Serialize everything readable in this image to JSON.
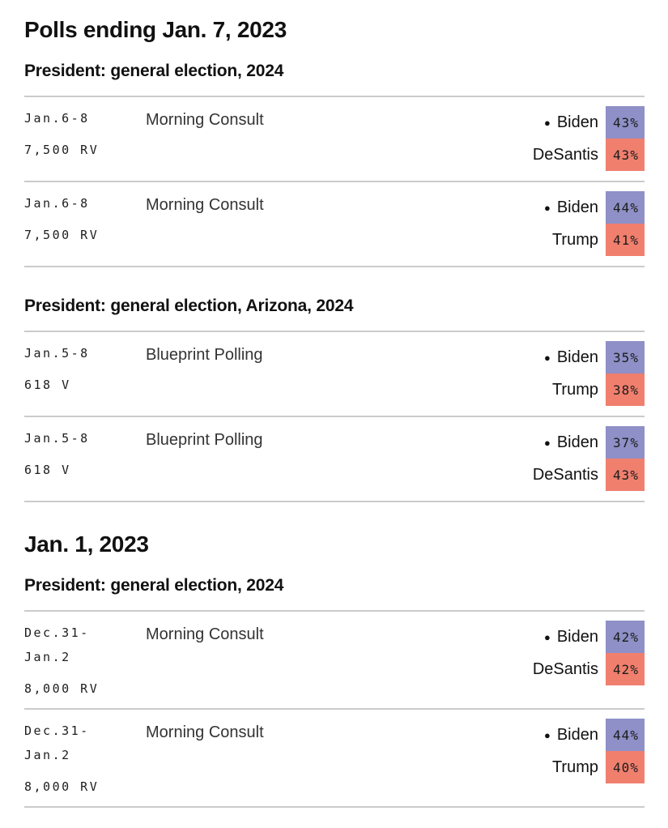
{
  "theme": {
    "dem_color": "#8e90c7",
    "rep_color": "#f07f6e",
    "divider_color": "#cbcbcb",
    "background": "#ffffff"
  },
  "icons": {
    "leader_dot": "●"
  },
  "sections": [
    {
      "heading": "Polls ending Jan. 7, 2023",
      "groups": [
        {
          "subheading": "President: general election, 2024",
          "polls": [
            {
              "date_lines": [
                "Jan.6-8"
              ],
              "sample": "7,500 RV",
              "pollster": "Morning Consult",
              "results": [
                {
                  "candidate": "Biden",
                  "pct": "43%",
                  "party": "dem",
                  "marker": true
                },
                {
                  "candidate": "DeSantis",
                  "pct": "43%",
                  "party": "rep",
                  "marker": false
                }
              ]
            },
            {
              "date_lines": [
                "Jan.6-8"
              ],
              "sample": "7,500 RV",
              "pollster": "Morning Consult",
              "results": [
                {
                  "candidate": "Biden",
                  "pct": "44%",
                  "party": "dem",
                  "marker": true
                },
                {
                  "candidate": "Trump",
                  "pct": "41%",
                  "party": "rep",
                  "marker": false
                }
              ]
            }
          ]
        },
        {
          "subheading": "President: general election, Arizona, 2024",
          "polls": [
            {
              "date_lines": [
                "Jan.5-8"
              ],
              "sample": "618 V",
              "pollster": "Blueprint Polling",
              "results": [
                {
                  "candidate": "Biden",
                  "pct": "35%",
                  "party": "dem",
                  "marker": true
                },
                {
                  "candidate": "Trump",
                  "pct": "38%",
                  "party": "rep",
                  "marker": false
                }
              ]
            },
            {
              "date_lines": [
                "Jan.5-8"
              ],
              "sample": "618 V",
              "pollster": "Blueprint Polling",
              "results": [
                {
                  "candidate": "Biden",
                  "pct": "37%",
                  "party": "dem",
                  "marker": true
                },
                {
                  "candidate": "DeSantis",
                  "pct": "43%",
                  "party": "rep",
                  "marker": false
                }
              ]
            }
          ]
        }
      ]
    },
    {
      "heading": "Jan. 1, 2023",
      "groups": [
        {
          "subheading": "President: general election, 2024",
          "polls": [
            {
              "date_lines": [
                "Dec.31-",
                "Jan.2"
              ],
              "sample": "8,000 RV",
              "pollster": "Morning Consult",
              "results": [
                {
                  "candidate": "Biden",
                  "pct": "42%",
                  "party": "dem",
                  "marker": true
                },
                {
                  "candidate": "DeSantis",
                  "pct": "42%",
                  "party": "rep",
                  "marker": false
                }
              ]
            },
            {
              "date_lines": [
                "Dec.31-",
                "Jan.2"
              ],
              "sample": "8,000 RV",
              "pollster": "Morning Consult",
              "results": [
                {
                  "candidate": "Biden",
                  "pct": "44%",
                  "party": "dem",
                  "marker": true
                },
                {
                  "candidate": "Trump",
                  "pct": "40%",
                  "party": "rep",
                  "marker": false
                }
              ]
            }
          ]
        }
      ]
    }
  ]
}
